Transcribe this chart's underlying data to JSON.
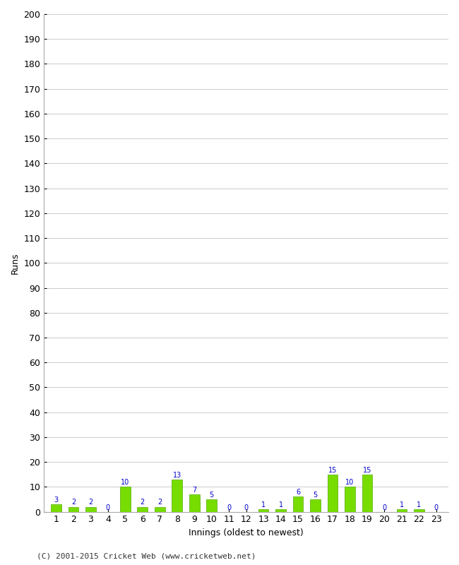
{
  "innings": [
    1,
    2,
    3,
    4,
    5,
    6,
    7,
    8,
    9,
    10,
    11,
    12,
    13,
    14,
    15,
    16,
    17,
    18,
    19,
    20,
    21,
    22,
    23
  ],
  "runs": [
    3,
    2,
    2,
    0,
    10,
    2,
    2,
    13,
    7,
    5,
    0,
    0,
    1,
    1,
    6,
    5,
    15,
    10,
    15,
    0,
    1,
    1,
    0
  ],
  "bar_color": "#77dd00",
  "bar_edge_color": "#55aa00",
  "label_color": "#0000cc",
  "background_color": "#ffffff",
  "plot_area_color": "#ffffff",
  "grid_color": "#cccccc",
  "ylabel": "Runs",
  "xlabel": "Innings (oldest to newest)",
  "ylim": [
    0,
    200
  ],
  "yticks": [
    0,
    10,
    20,
    30,
    40,
    50,
    60,
    70,
    80,
    90,
    100,
    110,
    120,
    130,
    140,
    150,
    160,
    170,
    180,
    190,
    200
  ],
  "footer": "(C) 2001-2015 Cricket Web (www.cricketweb.net)",
  "tick_fontsize": 9,
  "axis_label_fontsize": 9,
  "footer_fontsize": 8,
  "value_label_fontsize": 7
}
